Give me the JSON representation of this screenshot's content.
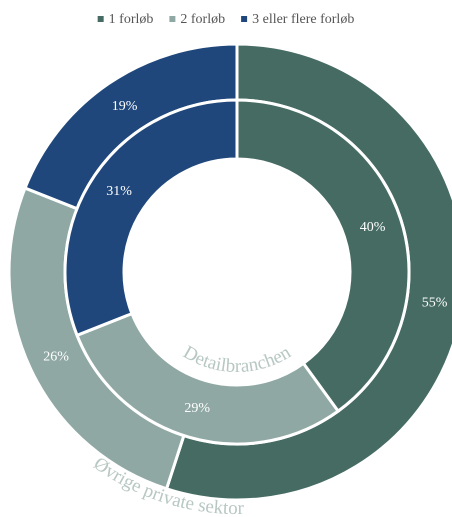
{
  "chart_data": {
    "type": "donut",
    "categories": [
      "1 forløb",
      "2 forløb",
      "3 eller flere forløb"
    ],
    "colors": [
      "#456b63",
      "#8fa8a3",
      "#1f477b"
    ],
    "series": [
      {
        "name": "Øvrige private sektor",
        "values": [
          55,
          26,
          19
        ],
        "value_labels": [
          "55%",
          "26%",
          "19%"
        ]
      },
      {
        "name": "Detailbranchen",
        "values": [
          40,
          29,
          31
        ],
        "value_labels": [
          "40%",
          "29%",
          "31%"
        ]
      }
    ],
    "legend": "top"
  }
}
